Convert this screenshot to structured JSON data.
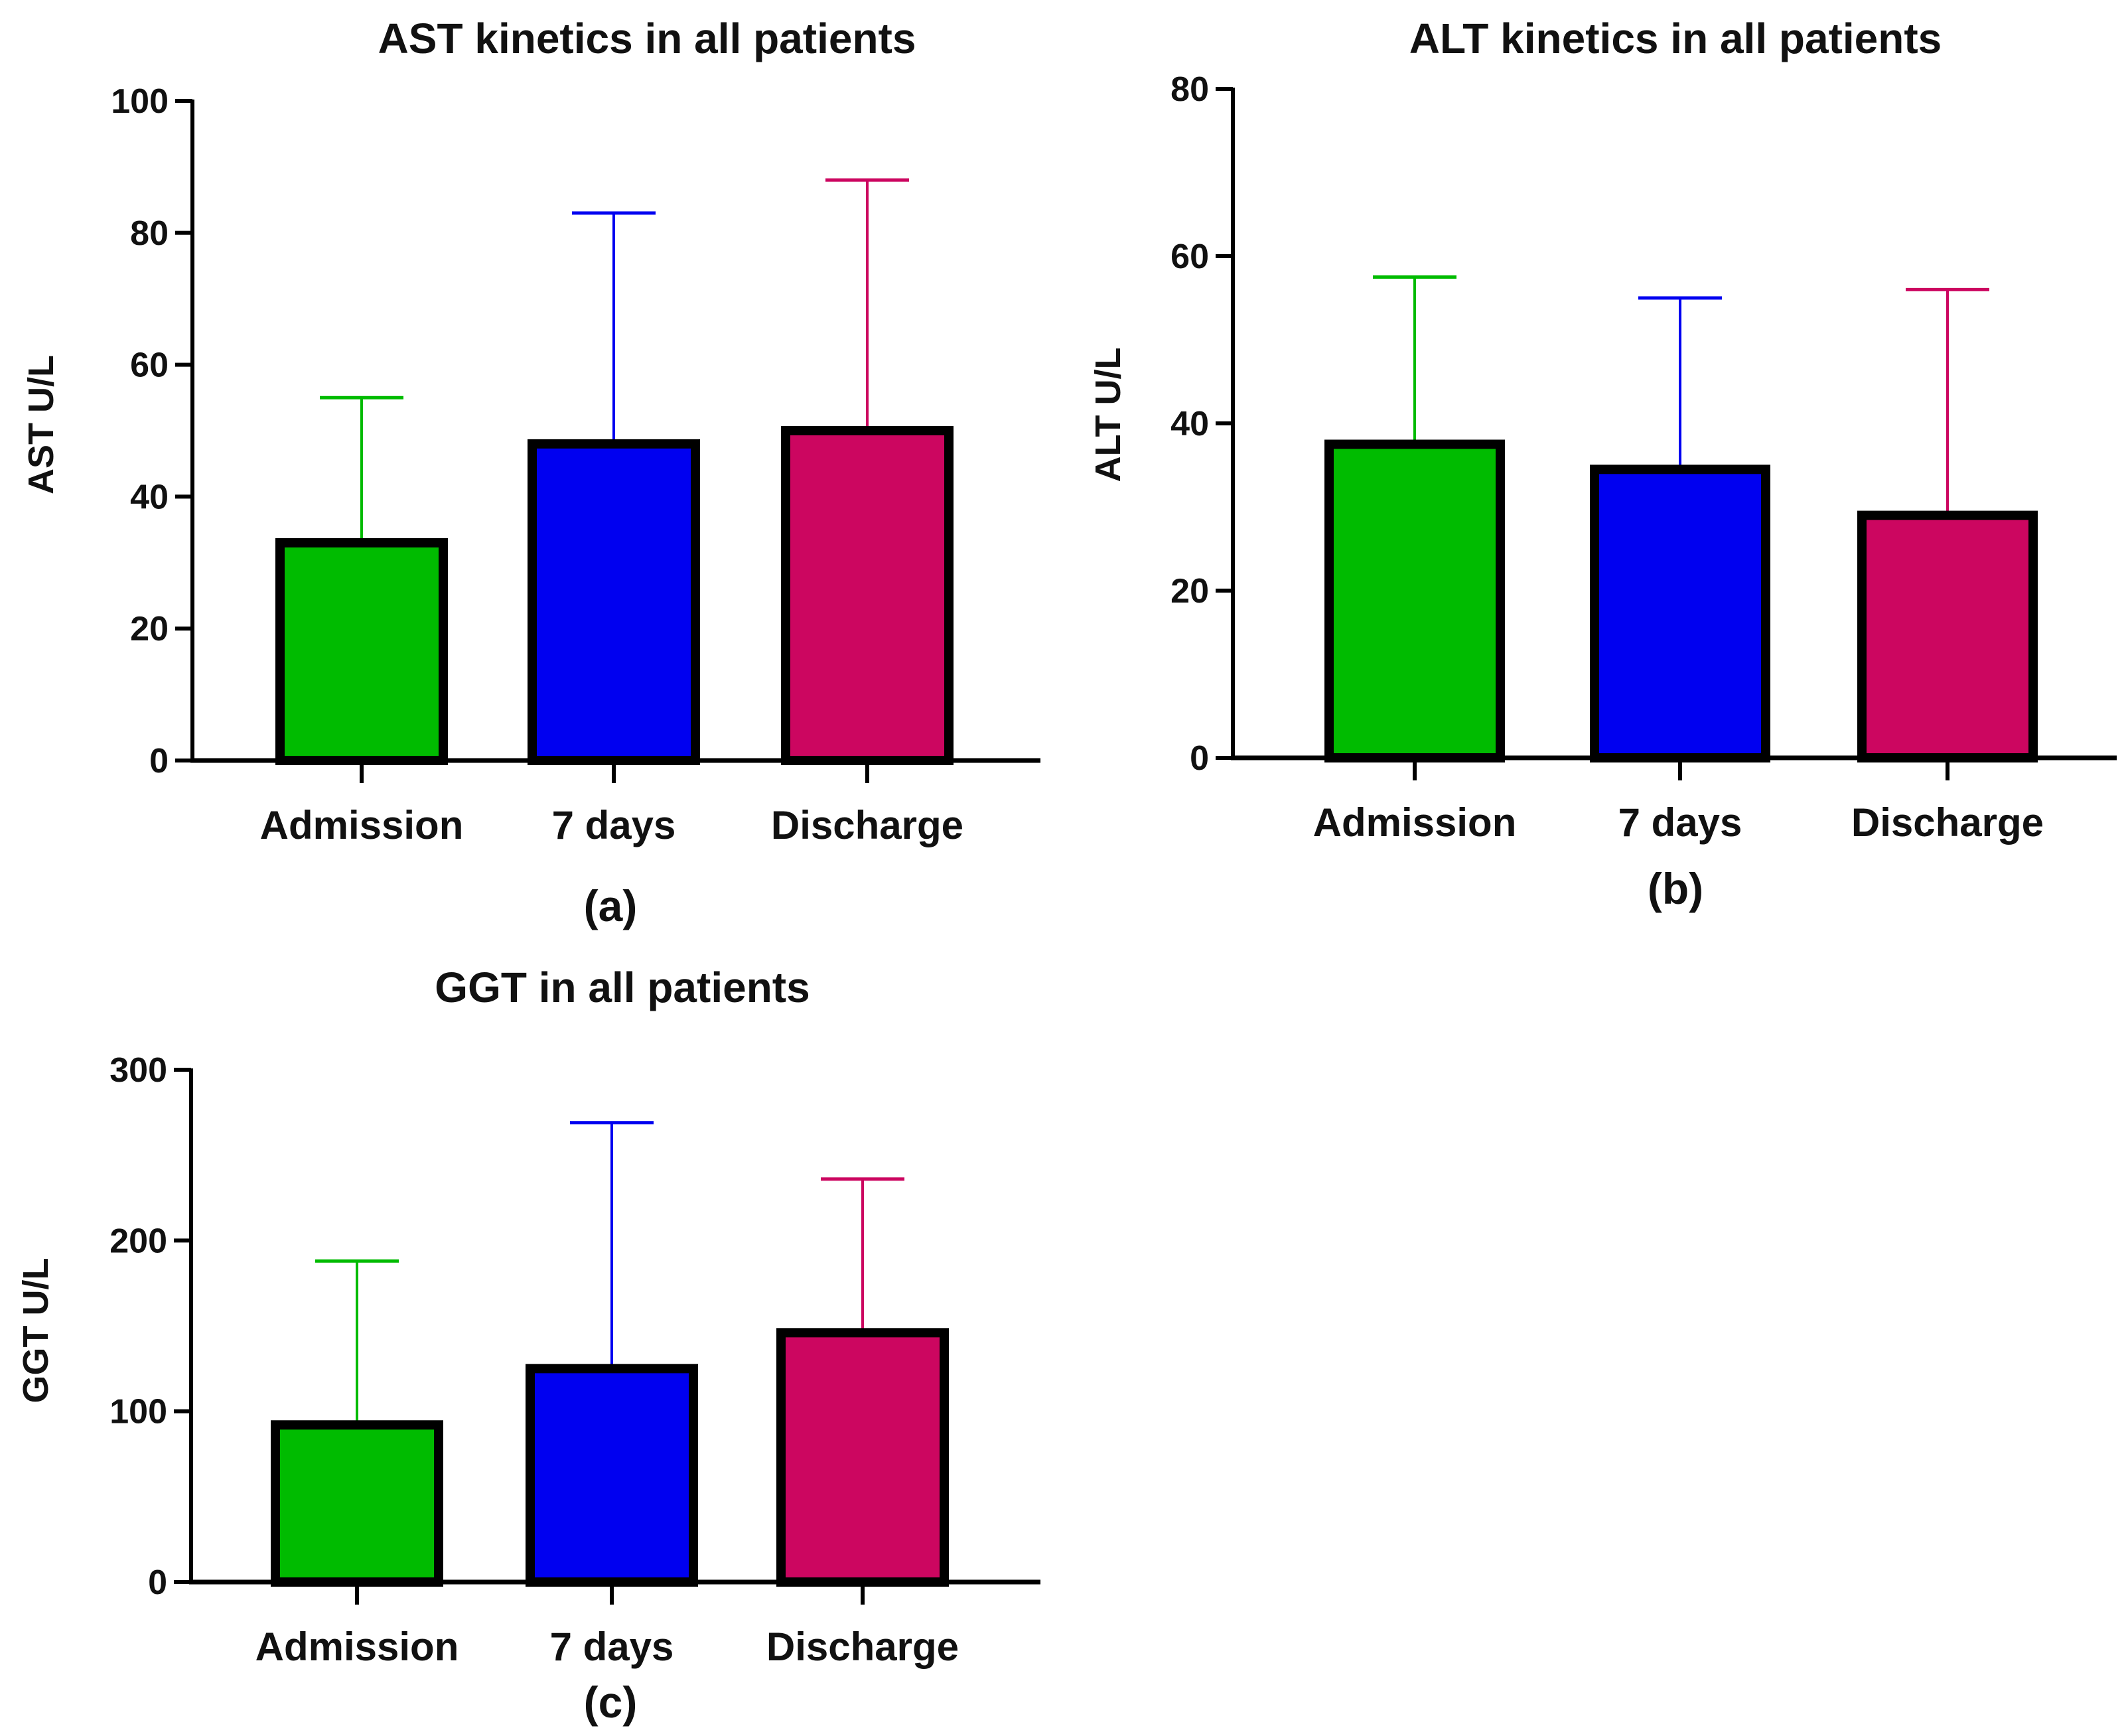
{
  "chart_data": [
    {
      "type": "bar",
      "title": "AST kinetics in all patients",
      "ylabel": "AST U/L",
      "xlabel": "",
      "panel_label": "(a)",
      "categories": [
        "Admission",
        "7 days",
        "Discharge"
      ],
      "values": [
        33,
        48,
        50
      ],
      "error_upper": [
        55,
        83,
        88
      ],
      "ylim": [
        0,
        100
      ],
      "yticks": [
        "0",
        "20",
        "40",
        "60",
        "80",
        "100"
      ],
      "bar_colors": [
        "#00bb00",
        "#0000f0",
        "#cc0660"
      ],
      "grid": false
    },
    {
      "type": "bar",
      "title": "ALT kinetics in all patients",
      "ylabel": "ALT U/L",
      "xlabel": "",
      "panel_label": "(b)",
      "categories": [
        "Admission",
        "7 days",
        "Discharge"
      ],
      "values": [
        37.5,
        34.5,
        29
      ],
      "error_upper": [
        57.5,
        55,
        56
      ],
      "ylim": [
        0,
        80
      ],
      "yticks": [
        "0",
        "20",
        "40",
        "60",
        "80"
      ],
      "bar_colors": [
        "#00bb00",
        "#0000f0",
        "#cc0660"
      ],
      "grid": false
    },
    {
      "type": "bar",
      "title": "GGT in all patients",
      "ylabel": "GGT U/L",
      "xlabel": "",
      "panel_label": "(c)",
      "categories": [
        "Admission",
        "7 days",
        "Discharge"
      ],
      "values": [
        92,
        125,
        146
      ],
      "error_upper": [
        188,
        269,
        236
      ],
      "ylim": [
        0,
        300
      ],
      "yticks": [
        "0",
        "100",
        "200",
        "300"
      ],
      "bar_colors": [
        "#00bb00",
        "#0000f0",
        "#cc0660"
      ],
      "grid": false
    }
  ]
}
